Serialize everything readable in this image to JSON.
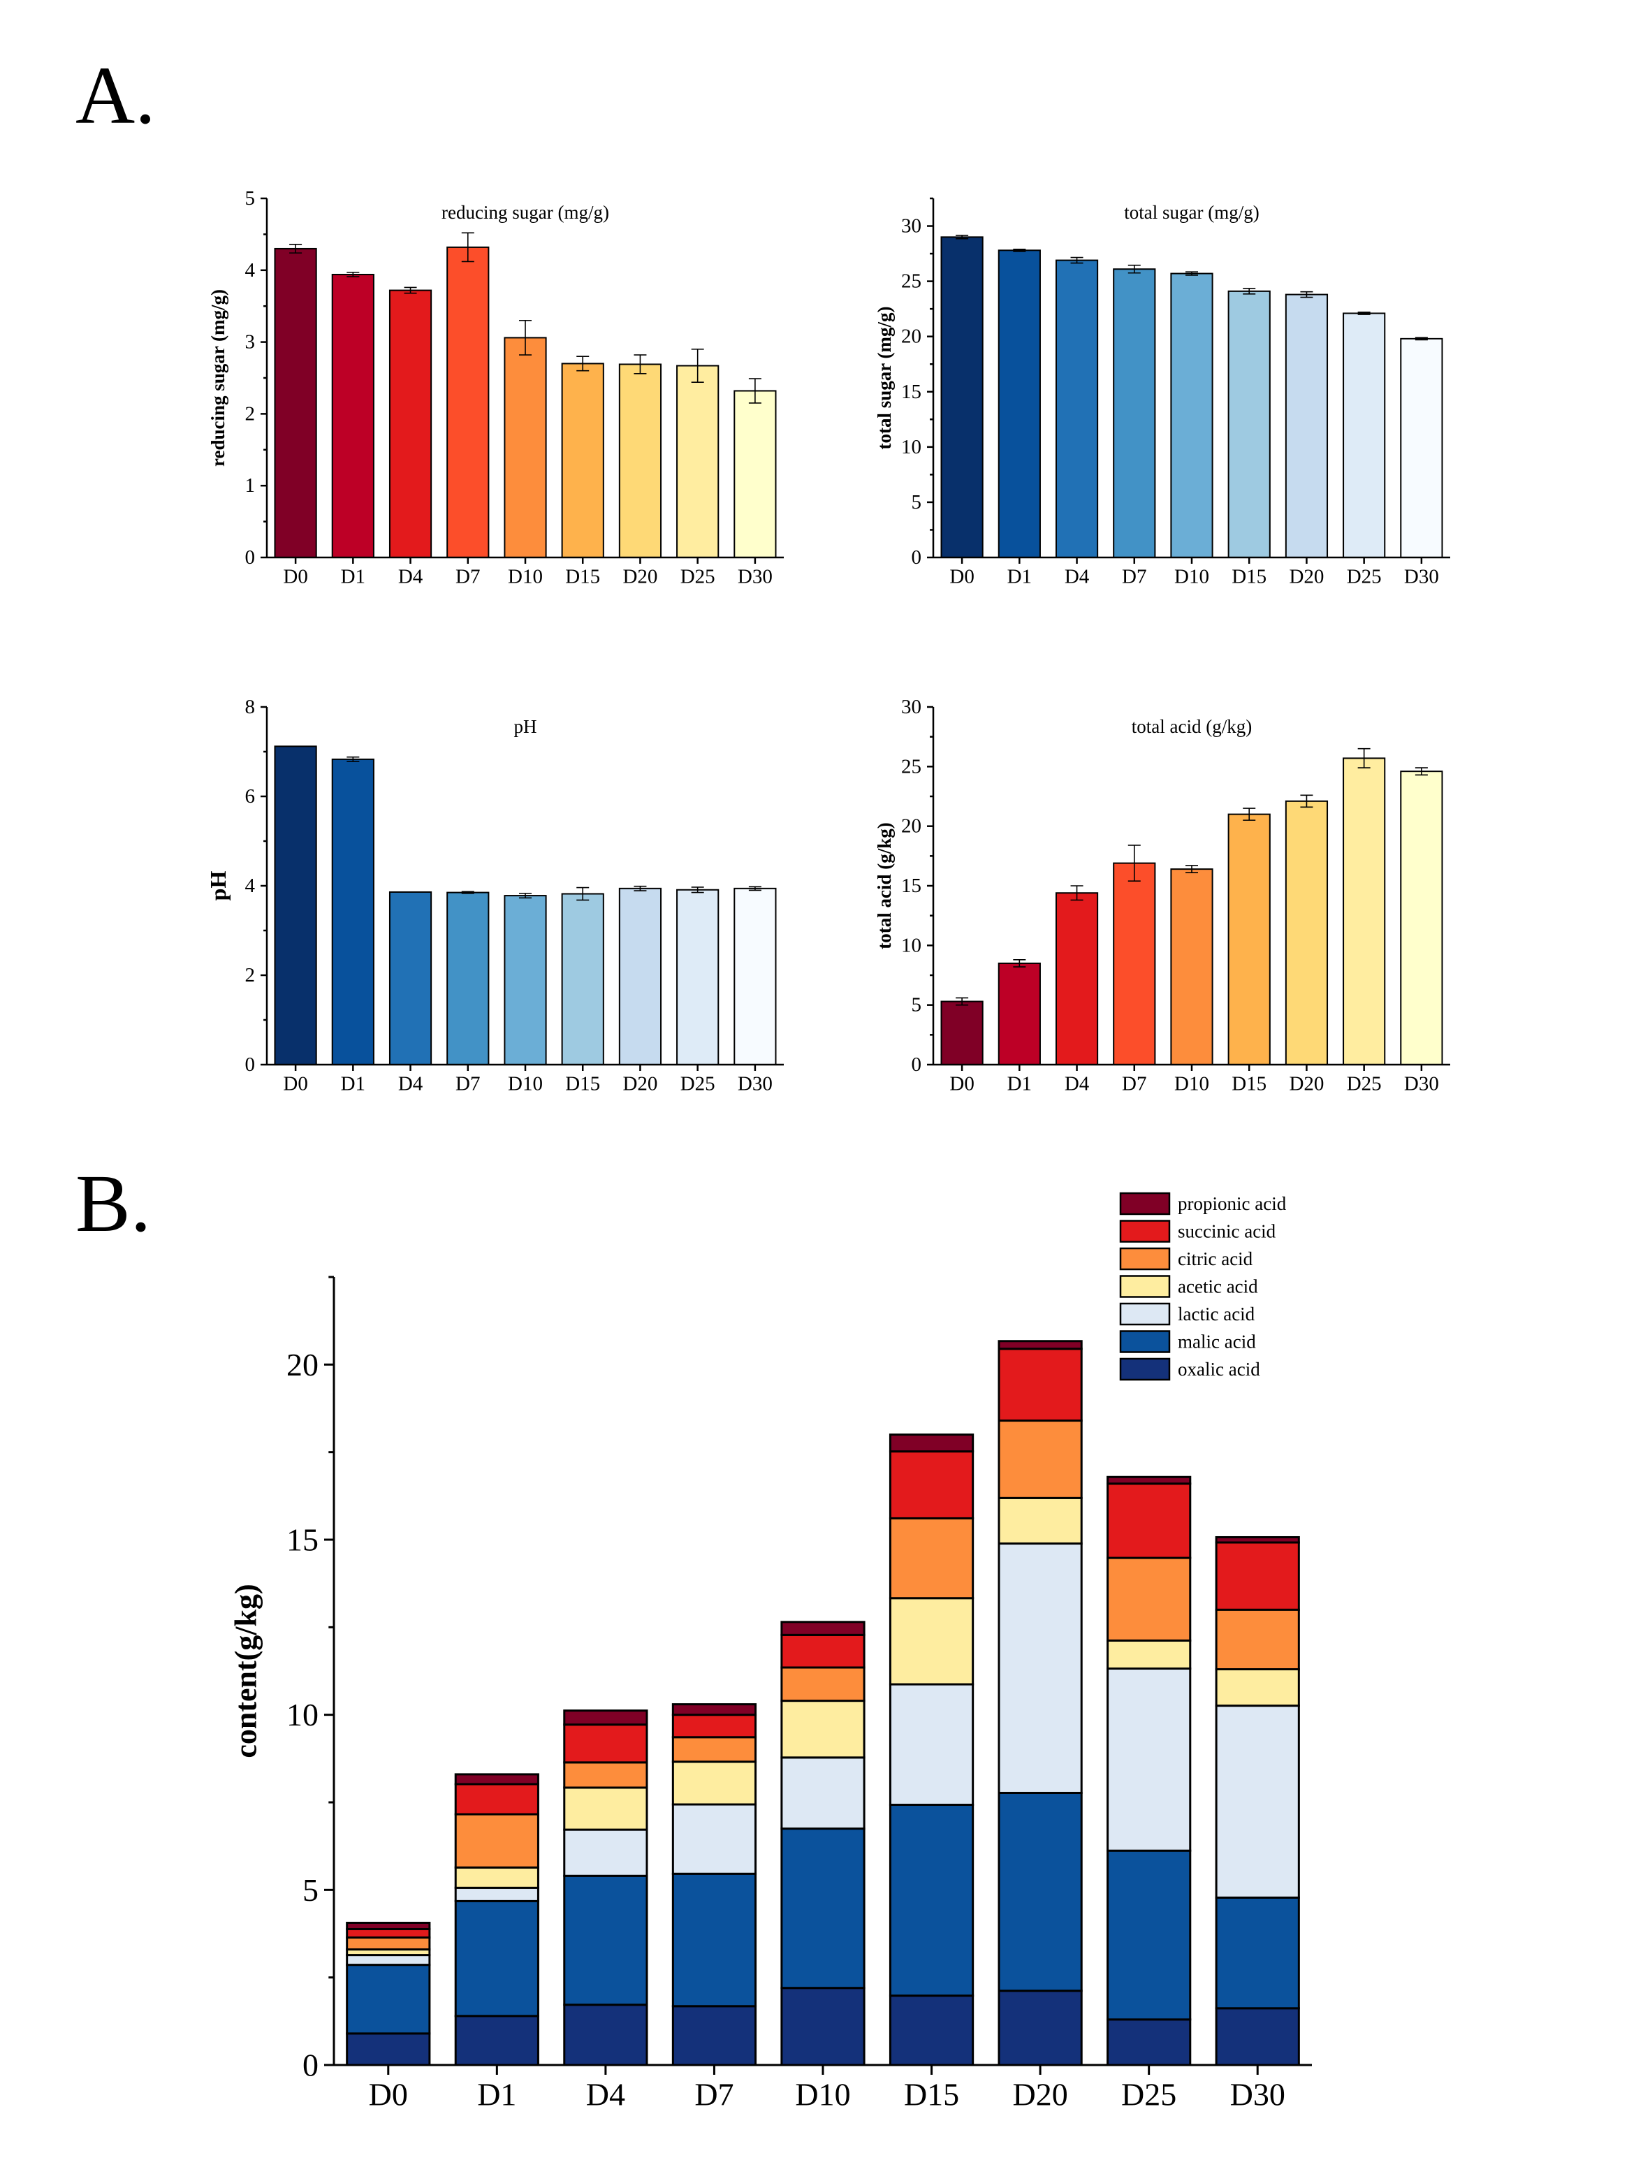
{
  "panel_labels": {
    "a": "A.",
    "b": "B."
  },
  "chart_data": [
    {
      "id": "reducing-sugar",
      "type": "bar",
      "title": "reducing sugar (mg/g)",
      "xlabel": "",
      "ylabel": "reducing sugar (mg/g)",
      "categories": [
        "D0",
        "D1",
        "D4",
        "D7",
        "D10",
        "D15",
        "D20",
        "D25",
        "D30"
      ],
      "values": [
        4.3,
        3.94,
        3.72,
        4.32,
        3.06,
        2.7,
        2.69,
        2.67,
        2.32
      ],
      "errors": [
        0.06,
        0.03,
        0.04,
        0.2,
        0.24,
        0.1,
        0.13,
        0.23,
        0.17
      ],
      "ylim": [
        0,
        5
      ],
      "yticks": [
        0,
        1,
        2,
        3,
        4,
        5
      ],
      "colors": [
        "#800026",
        "#bd0026",
        "#e31a1c",
        "#fc4e2a",
        "#fd8d3c",
        "#feb24c",
        "#fed976",
        "#ffeda0",
        "#ffffcc"
      ]
    },
    {
      "id": "total-sugar",
      "type": "bar",
      "title": "total sugar (mg/g)",
      "xlabel": "",
      "ylabel": "total sugar (mg/g)",
      "categories": [
        "D0",
        "D1",
        "D4",
        "D7",
        "D10",
        "D15",
        "D20",
        "D25",
        "D30"
      ],
      "values": [
        29.0,
        27.8,
        26.9,
        26.1,
        25.7,
        24.1,
        23.8,
        22.1,
        19.8
      ],
      "errors": [
        0.15,
        0.1,
        0.25,
        0.35,
        0.15,
        0.25,
        0.25,
        0.1,
        0.1
      ],
      "ylim": [
        0,
        32.5
      ],
      "yticks": [
        0,
        5,
        10,
        15,
        20,
        25,
        30
      ],
      "colors": [
        "#08306b",
        "#08519c",
        "#2171b5",
        "#4292c6",
        "#6baed6",
        "#9ecae1",
        "#c6dbef",
        "#deebf7",
        "#f7fbff"
      ]
    },
    {
      "id": "ph",
      "type": "bar",
      "title": "pH",
      "xlabel": "",
      "ylabel": "pH",
      "categories": [
        "D0",
        "D1",
        "D4",
        "D7",
        "D10",
        "D15",
        "D20",
        "D25",
        "D30"
      ],
      "values": [
        7.12,
        6.83,
        3.86,
        3.85,
        3.78,
        3.82,
        3.94,
        3.91,
        3.94
      ],
      "errors": [
        0.0,
        0.05,
        0.0,
        0.02,
        0.05,
        0.14,
        0.05,
        0.06,
        0.04
      ],
      "ylim": [
        0,
        8
      ],
      "yticks": [
        0,
        2,
        4,
        6,
        8
      ],
      "colors": [
        "#08306b",
        "#08519c",
        "#2171b5",
        "#4292c6",
        "#6baed6",
        "#9ecae1",
        "#c6dbef",
        "#deebf7",
        "#f7fbff"
      ]
    },
    {
      "id": "total-acid",
      "type": "bar",
      "title": "total acid (g/kg)",
      "xlabel": "",
      "ylabel": "total acid (g/kg)",
      "categories": [
        "D0",
        "D1",
        "D4",
        "D7",
        "D10",
        "D15",
        "D20",
        "D25",
        "D30"
      ],
      "values": [
        5.3,
        8.5,
        14.4,
        16.9,
        16.4,
        21.0,
        22.1,
        25.7,
        24.6
      ],
      "errors": [
        0.3,
        0.3,
        0.6,
        1.5,
        0.3,
        0.5,
        0.5,
        0.8,
        0.3
      ],
      "ylim": [
        0,
        30
      ],
      "yticks": [
        0,
        5,
        10,
        15,
        20,
        25,
        30
      ],
      "colors": [
        "#800026",
        "#bd0026",
        "#e31a1c",
        "#fc4e2a",
        "#fd8d3c",
        "#feb24c",
        "#fed976",
        "#ffeda0",
        "#ffffcc"
      ]
    },
    {
      "id": "organic-acids",
      "type": "bar",
      "stacked": true,
      "title": "",
      "xlabel": "",
      "ylabel": "content(g/kg)",
      "categories": [
        "D0",
        "D1",
        "D4",
        "D7",
        "D10",
        "D15",
        "D20",
        "D25",
        "D30"
      ],
      "ylim": [
        0,
        22.5
      ],
      "yticks": [
        0,
        5,
        10,
        15,
        20
      ],
      "legend_position": "top-right",
      "series": [
        {
          "name": "oxalic acid",
          "color": "#14317a",
          "values": [
            0.9,
            1.4,
            1.72,
            1.68,
            2.2,
            1.98,
            2.12,
            1.3,
            1.62
          ]
        },
        {
          "name": "malic acid",
          "color": "#0b529c",
          "values": [
            1.96,
            3.28,
            3.68,
            3.78,
            4.55,
            5.45,
            5.65,
            4.82,
            3.16
          ]
        },
        {
          "name": "lactic acid",
          "color": "#dde8f4",
          "values": [
            0.28,
            0.38,
            1.32,
            1.98,
            2.03,
            3.44,
            7.12,
            5.2,
            5.48
          ]
        },
        {
          "name": "acetic acid",
          "color": "#feeda0",
          "values": [
            0.16,
            0.58,
            1.2,
            1.22,
            1.62,
            2.46,
            1.3,
            0.8,
            1.04
          ]
        },
        {
          "name": "citric acid",
          "color": "#fd8d3c",
          "values": [
            0.34,
            1.52,
            0.72,
            0.7,
            0.95,
            2.28,
            2.21,
            2.36,
            1.7
          ]
        },
        {
          "name": "succinic acid",
          "color": "#e31a1c",
          "values": [
            0.24,
            0.86,
            1.08,
            0.64,
            0.93,
            1.91,
            2.05,
            2.12,
            1.92
          ]
        },
        {
          "name": "propionic acid",
          "color": "#800026",
          "values": [
            0.18,
            0.28,
            0.4,
            0.3,
            0.37,
            0.48,
            0.22,
            0.19,
            0.15
          ]
        }
      ]
    }
  ]
}
